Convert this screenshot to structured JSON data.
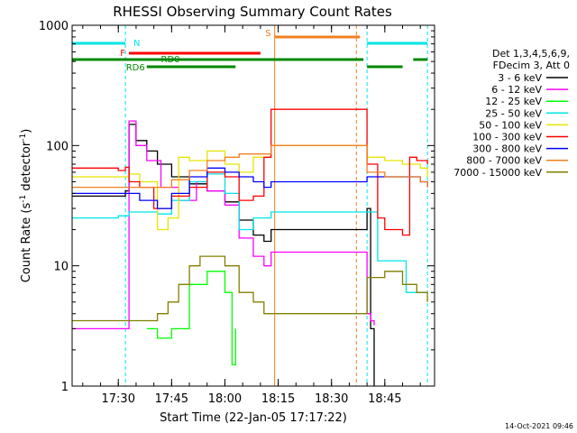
{
  "chart_data": {
    "type": "line",
    "title": "RHESSI Observing Summary Count Rates",
    "xlabel": "Start Time (22-Jan-05 17:17:22)",
    "ylabel_parts": [
      "Count Rate (s",
      "-1",
      " detector",
      "-1",
      ")"
    ],
    "yscale": "log",
    "ylim": [
      1,
      1000
    ],
    "xlim": [
      "17:17",
      "18:59"
    ],
    "x_ticks": [
      "17:30",
      "17:45",
      "18:00",
      "18:15",
      "18:30",
      "18:45"
    ],
    "y_ticks": [
      "1",
      "10",
      "100",
      "1000"
    ],
    "legend_header": [
      "Det 1,3,4,5,6,9,",
      "FDecim 3, Att 0"
    ],
    "legend_position": "right",
    "timestamp": "14-Oct-2021 09:46",
    "flags": [
      {
        "label": "N",
        "color": "#00e5e5",
        "segments": [
          [
            "17:17",
            "17:32"
          ],
          [
            "18:40",
            "18:57"
          ]
        ],
        "level": 4
      },
      {
        "label": "S",
        "color": "#f08020",
        "segments": [
          [
            "18:14",
            "18:38"
          ]
        ],
        "level": 5
      },
      {
        "label": "F",
        "color": "#ff0000",
        "segments": [
          [
            "17:33",
            "18:10"
          ]
        ],
        "level": 3
      },
      {
        "label": "RD0",
        "color": "#008800",
        "segments": [
          [
            "17:17",
            "18:39"
          ],
          [
            "18:53",
            "18:57"
          ]
        ],
        "level": 2
      },
      {
        "label": "RD6",
        "color": "#008800",
        "segments": [
          [
            "17:38",
            "18:03"
          ],
          [
            "18:40",
            "18:50"
          ]
        ],
        "level": 1
      }
    ],
    "vertical_markers": [
      {
        "time": "17:32",
        "color": "#00e5e5",
        "style": "dashed"
      },
      {
        "time": "18:14",
        "color": "#f08020",
        "style": "solid"
      },
      {
        "time": "18:37",
        "color": "#f08020",
        "style": "dashed"
      },
      {
        "time": "18:40",
        "color": "#00e5e5",
        "style": "dashed"
      },
      {
        "time": "18:57",
        "color": "#00e5e5",
        "style": "dashed"
      }
    ],
    "series": [
      {
        "name": "3 - 6 keV",
        "color": "#000000",
        "x": [
          "17:17",
          "17:32",
          "17:33",
          "17:35",
          "17:38",
          "17:41",
          "17:45",
          "17:50",
          "17:55",
          "18:00",
          "18:04",
          "18:08",
          "18:11",
          "18:13",
          "18:40",
          "18:41",
          "18:42"
        ],
        "y": [
          38,
          42,
          150,
          110,
          90,
          70,
          55,
          48,
          42,
          34,
          24,
          18,
          16,
          20,
          30,
          3,
          1
        ]
      },
      {
        "name": "6 - 12 keV",
        "color": "#ff00ff",
        "x": [
          "17:17",
          "17:30",
          "17:32",
          "17:33",
          "17:35",
          "17:38",
          "17:42",
          "17:47",
          "17:52",
          "17:55",
          "18:00",
          "18:04",
          "18:08",
          "18:11",
          "18:13",
          "18:40",
          "18:41",
          "18:42"
        ],
        "y": [
          3,
          3,
          3,
          160,
          100,
          75,
          45,
          35,
          50,
          42,
          32,
          17,
          12,
          10,
          13,
          4,
          3.5,
          3.2
        ]
      },
      {
        "name": "12 - 25 keV",
        "color": "#00ff00",
        "x": [
          "17:38",
          "17:41",
          "17:45",
          "17:48",
          "17:50",
          "17:55",
          "18:00",
          "18:02",
          "18:03"
        ],
        "y": [
          3,
          2.5,
          3,
          3,
          7,
          9,
          6,
          1.5,
          3
        ]
      },
      {
        "name": "25 - 50 keV",
        "color": "#00e5e5",
        "x": [
          "17:17",
          "17:30",
          "17:33",
          "17:36",
          "17:41",
          "17:45",
          "17:50",
          "17:55",
          "18:00",
          "18:04",
          "18:08",
          "18:11",
          "18:13",
          "18:40",
          "18:43",
          "18:47",
          "18:51",
          "18:55",
          "18:57"
        ],
        "y": [
          25,
          26,
          28,
          28,
          27,
          35,
          50,
          58,
          40,
          20,
          25,
          25,
          28,
          28,
          11,
          11,
          6,
          6,
          6
        ]
      },
      {
        "name": "50 - 100 keV",
        "color": "#e5e500",
        "x": [
          "17:17",
          "17:30",
          "17:33",
          "17:36",
          "17:41",
          "17:44",
          "17:47",
          "17:50",
          "17:55",
          "18:00",
          "18:04",
          "18:08",
          "18:11",
          "18:13",
          "18:40",
          "18:45",
          "18:50",
          "18:55",
          "18:57"
        ],
        "y": [
          55,
          55,
          58,
          50,
          20,
          25,
          80,
          75,
          90,
          70,
          60,
          80,
          80,
          100,
          80,
          75,
          70,
          65,
          55
        ]
      },
      {
        "name": "100 - 300 keV",
        "color": "#ff0000",
        "x": [
          "17:17",
          "17:30",
          "17:32",
          "17:33",
          "17:36",
          "17:40",
          "17:45",
          "17:50",
          "17:55",
          "18:00",
          "18:04",
          "18:08",
          "18:11",
          "18:13",
          "18:40",
          "18:43",
          "18:45",
          "18:50",
          "18:52",
          "18:54",
          "18:57"
        ],
        "y": [
          65,
          62,
          66,
          50,
          45,
          30,
          38,
          45,
          60,
          55,
          35,
          38,
          80,
          200,
          70,
          25,
          20,
          18,
          80,
          75,
          70
        ]
      },
      {
        "name": "300 - 800 keV",
        "color": "#0000ff",
        "x": [
          "17:17",
          "17:32",
          "17:36",
          "17:41",
          "17:45",
          "17:50",
          "17:55",
          "18:00",
          "18:04",
          "18:08",
          "18:11",
          "18:13",
          "18:40",
          "18:45",
          "18:50",
          "18:55",
          "18:57"
        ],
        "y": [
          40,
          40,
          35,
          30,
          40,
          55,
          65,
          60,
          55,
          50,
          45,
          50,
          55,
          55,
          55,
          50,
          45
        ]
      },
      {
        "name": "800 - 7000 keV",
        "color": "#f08020",
        "x": [
          "17:17",
          "17:30",
          "17:33",
          "17:38",
          "17:45",
          "17:50",
          "17:55",
          "18:00",
          "18:04",
          "18:08",
          "18:11",
          "18:13",
          "18:40",
          "18:45",
          "18:50",
          "18:55",
          "18:57"
        ],
        "y": [
          45,
          45,
          45,
          45,
          52,
          62,
          75,
          80,
          85,
          85,
          85,
          100,
          60,
          55,
          55,
          50,
          45
        ]
      },
      {
        "name": "7000 - 15000 keV",
        "color": "#808000",
        "x": [
          "17:17",
          "17:32",
          "17:34",
          "17:38",
          "17:41",
          "17:44",
          "17:47",
          "17:50",
          "17:53",
          "17:56",
          "18:00",
          "18:04",
          "18:08",
          "18:11",
          "18:13",
          "18:14",
          "18:40",
          "18:45",
          "18:50",
          "18:54",
          "18:57"
        ],
        "y": [
          3.5,
          3.5,
          3.5,
          3.5,
          4,
          5,
          7,
          10,
          12,
          12,
          10,
          6,
          5,
          4,
          4,
          4,
          8,
          9,
          7,
          6,
          5
        ]
      }
    ]
  }
}
